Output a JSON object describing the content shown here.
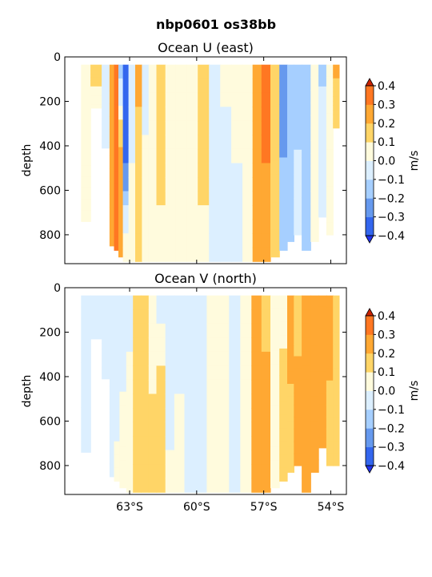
{
  "chart_data": {
    "title": "nbp0601 os38bb",
    "type": "heatmap",
    "colormap_levels": [
      -0.4,
      -0.3,
      -0.2,
      -0.1,
      0.0,
      0.1,
      0.2,
      0.3,
      0.4
    ],
    "colormap_colors": [
      "#2233ee",
      "#3366ee",
      "#6699ee",
      "#a6cfff",
      "#dcefff",
      "#fffbdd",
      "#ffd567",
      "#ffa833",
      "#ff7722",
      "#cc2200"
    ],
    "panels": [
      {
        "title": "Ocean U (east)",
        "ylabel": "depth",
        "y_ticks": [
          "0",
          "200",
          "400",
          "600",
          "800"
        ],
        "ylim": [
          0,
          930
        ],
        "x_ticks": [
          "63°S",
          "60°S",
          "57°S",
          "54°S"
        ],
        "colorbar": {
          "label": "m/s",
          "ticks": [
            "0.4",
            "0.3",
            "0.2",
            "0.1",
            "0.0",
            "−0.1",
            "−0.2",
            "−0.3",
            "−0.4"
          ]
        },
        "columns": [
          {
            "lat": -65.0,
            "vals": [
              0.1,
              0.1,
              0.1
            ],
            "maxd": 740
          },
          {
            "lat": -64.5,
            "vals": [
              0.2,
              0.1,
              0.0
            ],
            "maxd": 230
          },
          {
            "lat": -64.0,
            "vals": [
              0.0,
              -0.1,
              0.0
            ],
            "maxd": 410
          },
          {
            "lat": -63.8,
            "vals": [
              0.3,
              0.25,
              0.2
            ],
            "maxd": 850
          },
          {
            "lat": -63.6,
            "vals": [
              0.4,
              0.35,
              0.3
            ],
            "maxd": 870
          },
          {
            "lat": -63.4,
            "vals": [
              -0.15,
              0.25,
              0.2
            ],
            "maxd": 900
          },
          {
            "lat": -63.2,
            "vals": [
              -0.35,
              -0.3,
              0.1
            ],
            "maxd": 920
          },
          {
            "lat": -62.9,
            "vals": [
              0.0,
              0.0,
              0.1
            ],
            "maxd": 920
          },
          {
            "lat": -62.6,
            "vals": [
              0.25,
              0.15,
              0.1
            ],
            "maxd": 920
          },
          {
            "lat": -62.3,
            "vals": [
              -0.1,
              0.05,
              0.1
            ],
            "maxd": 920
          },
          {
            "lat": -62.0,
            "vals": [
              0.1,
              0.05,
              0.1
            ],
            "maxd": 920
          },
          {
            "lat": -61.6,
            "vals": [
              0.2,
              0.15,
              0.05
            ],
            "maxd": 920
          },
          {
            "lat": -61.2,
            "vals": [
              0.05,
              0.0,
              0.05
            ],
            "maxd": 920
          },
          {
            "lat": -60.7,
            "vals": [
              0.1,
              0.05,
              0.1
            ],
            "maxd": 920
          },
          {
            "lat": -60.2,
            "vals": [
              0.05,
              0.05,
              0.0
            ],
            "maxd": 920
          },
          {
            "lat": -59.7,
            "vals": [
              0.2,
              0.15,
              0.05
            ],
            "maxd": 920
          },
          {
            "lat": -59.2,
            "vals": [
              0.0,
              -0.05,
              -0.05
            ],
            "maxd": 920
          },
          {
            "lat": -58.7,
            "vals": [
              0.05,
              -0.05,
              -0.05
            ],
            "maxd": 920
          },
          {
            "lat": -58.2,
            "vals": [
              0.05,
              0.0,
              0.0
            ],
            "maxd": 920
          },
          {
            "lat": -57.7,
            "vals": [
              0.05,
              0.1,
              0.05
            ],
            "maxd": 920
          },
          {
            "lat": -57.3,
            "vals": [
              0.25,
              0.25,
              0.2
            ],
            "maxd": 920
          },
          {
            "lat": -56.9,
            "vals": [
              0.35,
              0.3,
              0.3
            ],
            "maxd": 920
          },
          {
            "lat": -56.5,
            "vals": [
              0.1,
              0.2,
              0.15
            ],
            "maxd": 900
          },
          {
            "lat": -56.1,
            "vals": [
              -0.3,
              -0.2,
              -0.15
            ],
            "maxd": 870
          },
          {
            "lat": -55.8,
            "vals": [
              -0.2,
              -0.15,
              -0.1
            ],
            "maxd": 830
          },
          {
            "lat": -55.5,
            "vals": [
              -0.15,
              -0.1,
              -0.05
            ],
            "maxd": 800
          },
          {
            "lat": -55.1,
            "vals": [
              -0.2,
              -0.1,
              -0.1
            ],
            "maxd": 870
          },
          {
            "lat": -54.7,
            "vals": [
              0.05,
              0.0,
              0.05
            ],
            "maxd": 830
          },
          {
            "lat": -54.4,
            "vals": [
              -0.15,
              0.0,
              0.0
            ],
            "maxd": 720
          },
          {
            "lat": -54.0,
            "vals": [
              0.1,
              0.05,
              0.05
            ],
            "maxd": 800
          },
          {
            "lat": -53.8,
            "vals": [
              0.25,
              0.15,
              0.1
            ],
            "maxd": 320
          }
        ]
      },
      {
        "title": "Ocean V (north)",
        "ylabel": "depth",
        "y_ticks": [
          "0",
          "200",
          "400",
          "600",
          "800"
        ],
        "ylim": [
          0,
          930
        ],
        "x_ticks": [
          "63°S",
          "60°S",
          "57°S",
          "54°S"
        ],
        "colorbar": {
          "label": "m/s",
          "ticks": [
            "0.4",
            "0.3",
            "0.2",
            "0.1",
            "0.0",
            "−0.1",
            "−0.2",
            "−0.3",
            "−0.4"
          ]
        },
        "columns": [
          {
            "lat": -65.0,
            "vals": [
              -0.05,
              0.0,
              -0.05
            ],
            "maxd": 740
          },
          {
            "lat": -64.5,
            "vals": [
              -0.1,
              0.0,
              0.0
            ],
            "maxd": 230
          },
          {
            "lat": -64.0,
            "vals": [
              -0.05,
              0.0,
              0.0
            ],
            "maxd": 410
          },
          {
            "lat": -63.8,
            "vals": [
              -0.05,
              -0.05,
              0.0
            ],
            "maxd": 850
          },
          {
            "lat": -63.6,
            "vals": [
              0.0,
              -0.05,
              0.05
            ],
            "maxd": 870
          },
          {
            "lat": -63.3,
            "vals": [
              -0.1,
              0.0,
              0.1
            ],
            "maxd": 900
          },
          {
            "lat": -63.0,
            "vals": [
              -0.05,
              0.05,
              0.1
            ],
            "maxd": 920
          },
          {
            "lat": -62.7,
            "vals": [
              0.1,
              0.15,
              0.1
            ],
            "maxd": 920
          },
          {
            "lat": -62.3,
            "vals": [
              0.15,
              0.2,
              0.15
            ],
            "maxd": 920
          },
          {
            "lat": -62.0,
            "vals": [
              0.05,
              0.1,
              0.2
            ],
            "maxd": 920
          },
          {
            "lat": -61.6,
            "vals": [
              -0.05,
              0.15,
              0.1
            ],
            "maxd": 920
          },
          {
            "lat": -61.2,
            "vals": [
              -0.1,
              -0.05,
              0.05
            ],
            "maxd": 920
          },
          {
            "lat": -60.8,
            "vals": [
              -0.05,
              0.0,
              0.05
            ],
            "maxd": 920
          },
          {
            "lat": -60.3,
            "vals": [
              -0.1,
              -0.05,
              0.0
            ],
            "maxd": 920
          },
          {
            "lat": -59.8,
            "vals": [
              -0.1,
              0.0,
              -0.05
            ],
            "maxd": 920
          },
          {
            "lat": -59.3,
            "vals": [
              0.0,
              0.05,
              0.0
            ],
            "maxd": 920
          },
          {
            "lat": -58.8,
            "vals": [
              0.05,
              0.1,
              0.05
            ],
            "maxd": 920
          },
          {
            "lat": -58.3,
            "vals": [
              0.0,
              -0.05,
              0.0
            ],
            "maxd": 920
          },
          {
            "lat": -57.8,
            "vals": [
              0.05,
              0.1,
              0.1
            ],
            "maxd": 920
          },
          {
            "lat": -57.3,
            "vals": [
              0.25,
              0.25,
              0.2
            ],
            "maxd": 920
          },
          {
            "lat": -56.9,
            "vals": [
              0.15,
              0.25,
              0.3
            ],
            "maxd": 920
          },
          {
            "lat": -56.5,
            "vals": [
              0.1,
              0.1,
              0.1
            ],
            "maxd": 900
          },
          {
            "lat": -56.1,
            "vals": [
              0.05,
              0.15,
              0.2
            ],
            "maxd": 870
          },
          {
            "lat": -55.8,
            "vals": [
              0.25,
              0.2,
              0.15
            ],
            "maxd": 830
          },
          {
            "lat": -55.5,
            "vals": [
              0.1,
              0.25,
              0.2
            ],
            "maxd": 800
          },
          {
            "lat": -55.1,
            "vals": [
              0.25,
              0.2,
              0.25
            ],
            "maxd": 920
          },
          {
            "lat": -54.7,
            "vals": [
              0.3,
              0.25,
              0.25
            ],
            "maxd": 830
          },
          {
            "lat": -54.4,
            "vals": [
              0.25,
              0.3,
              0.2
            ],
            "maxd": 720
          },
          {
            "lat": -54.0,
            "vals": [
              0.25,
              0.2,
              0.2
            ],
            "maxd": 800
          },
          {
            "lat": -53.8,
            "vals": [
              0.2,
              0.15,
              0.15
            ],
            "maxd": 800
          }
        ]
      }
    ]
  }
}
